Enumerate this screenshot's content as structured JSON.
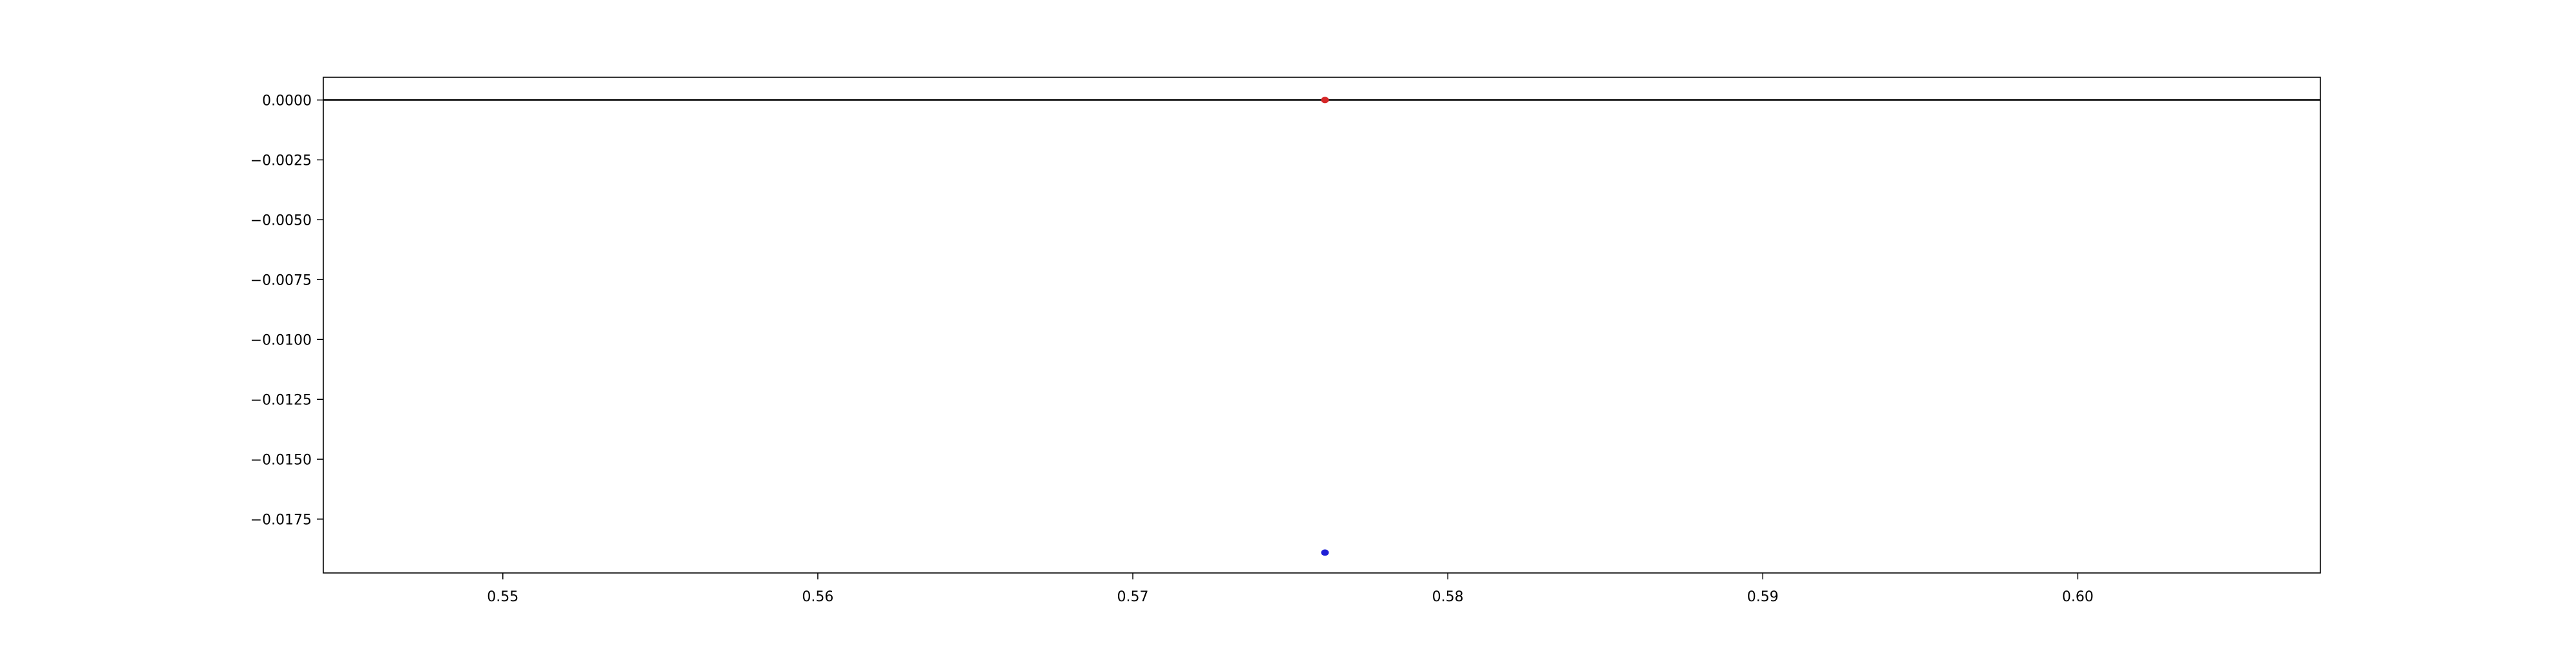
{
  "chart_data": {
    "type": "scatter",
    "title": "",
    "xlabel": "",
    "ylabel": "",
    "xlim": [
      0.5443,
      0.6077
    ],
    "ylim": [
      -0.01975,
      0.00095
    ],
    "x_ticks": [
      0.55,
      0.56,
      0.57,
      0.58,
      0.59,
      0.6
    ],
    "x_tick_labels": [
      "0.55",
      "0.56",
      "0.57",
      "0.58",
      "0.59",
      "0.60"
    ],
    "y_ticks": [
      0.0,
      -0.0025,
      -0.005,
      -0.0075,
      -0.01,
      -0.0125,
      -0.015,
      -0.0175
    ],
    "y_tick_labels": [
      "0.0000",
      "−0.0025",
      "−0.0050",
      "−0.0075",
      "−0.0100",
      "−0.0125",
      "−0.0150",
      "−0.0175"
    ],
    "grid": false,
    "reference_line": {
      "y": 0.0,
      "color": "#000000"
    },
    "series": [
      {
        "color": "#d62728",
        "points": [
          {
            "x": 0.5761,
            "y": 0.0
          }
        ]
      },
      {
        "color": "#1f1fd6",
        "points": [
          {
            "x": 0.5761,
            "y": -0.0189
          }
        ]
      }
    ]
  }
}
